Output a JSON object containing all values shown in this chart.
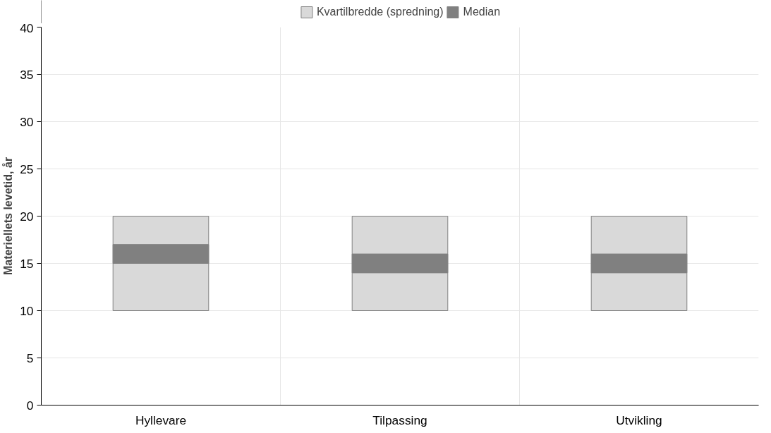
{
  "chart_data": {
    "type": "bar",
    "ylabel": "Materiellets levetid, år",
    "categories": [
      "Hyllevare",
      "Tilpassing",
      "Utvikling"
    ],
    "series": [
      {
        "name": "Kvartilbredde (spredning)",
        "color": "#d9d9d9",
        "base": [
          10,
          10,
          10
        ],
        "values": [
          10,
          10,
          10
        ]
      },
      {
        "name": "Median",
        "color": "#808080",
        "base": [
          15,
          14,
          14
        ],
        "values": [
          2,
          2,
          2
        ]
      }
    ],
    "ylim": [
      0,
      40
    ],
    "yticks": [
      0,
      5,
      10,
      15,
      20,
      25,
      30,
      35,
      40
    ],
    "grid": true,
    "legend": "top"
  }
}
